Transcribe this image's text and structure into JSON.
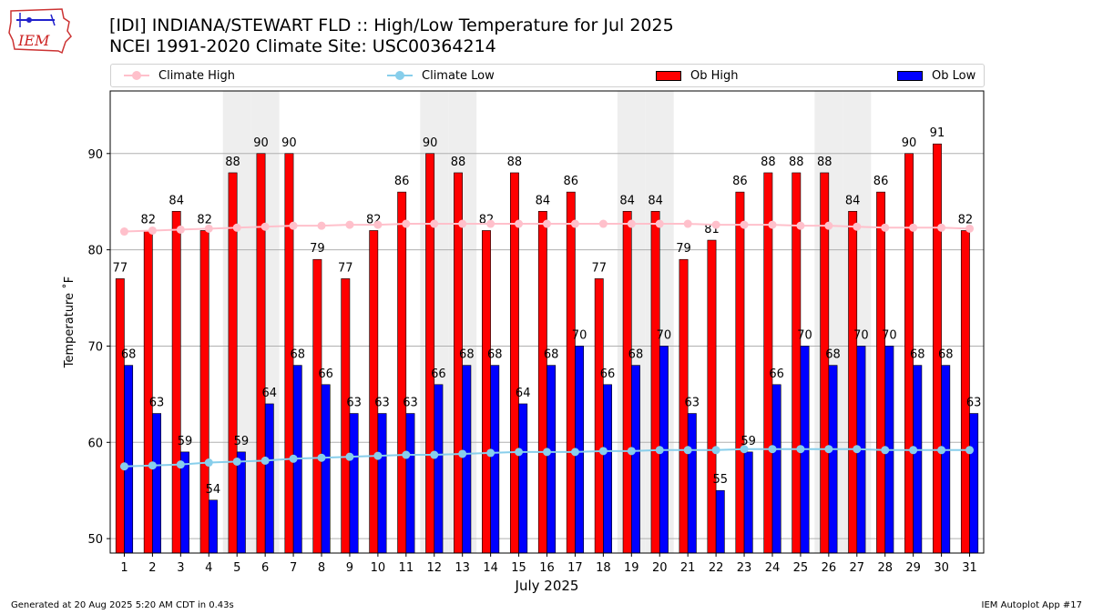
{
  "header": {
    "logo_text": "IEM",
    "title_line1": "[IDI] INDIANA/STEWART FLD :: High/Low Temperature for Jul 2025",
    "title_line2": "NCEI 1991-2020 Climate Site: USC00364214"
  },
  "legend": {
    "items": [
      {
        "label": "Climate High",
        "kind": "line",
        "color": "#ffc0cb"
      },
      {
        "label": "Climate Low",
        "kind": "line",
        "color": "#87ceeb"
      },
      {
        "label": "Ob High",
        "kind": "box",
        "color": "#ff0000"
      },
      {
        "label": "Ob Low",
        "kind": "box",
        "color": "#0000ff"
      }
    ]
  },
  "footer": {
    "left": "Generated at 20 Aug 2025 5:20 AM CDT in 0.43s",
    "right": "IEM Autoplot App #17"
  },
  "chart_data": {
    "type": "bar",
    "xlabel": "July 2025",
    "ylabel": "Temperature ˚F",
    "ylim": [
      48.5,
      96.5
    ],
    "yticks": [
      50,
      60,
      70,
      80,
      90
    ],
    "grid": "horizontal",
    "legend_position": "top",
    "categories": [
      "1",
      "2",
      "3",
      "4",
      "5",
      "6",
      "7",
      "8",
      "9",
      "10",
      "11",
      "12",
      "13",
      "14",
      "15",
      "16",
      "17",
      "18",
      "19",
      "20",
      "21",
      "22",
      "23",
      "24",
      "25",
      "26",
      "27",
      "28",
      "29",
      "30",
      "31"
    ],
    "shaded_days": [
      5,
      6,
      12,
      13,
      19,
      20,
      26,
      27
    ],
    "shade_color": "#eeeeee",
    "series": [
      {
        "name": "Ob High",
        "kind": "bar",
        "color": "#ff0000",
        "values": [
          77,
          82,
          84,
          82,
          88,
          90,
          90,
          79,
          77,
          82,
          86,
          90,
          88,
          82,
          88,
          84,
          86,
          77,
          84,
          84,
          79,
          81,
          86,
          88,
          88,
          88,
          84,
          86,
          90,
          91,
          82
        ]
      },
      {
        "name": "Ob Low",
        "kind": "bar",
        "color": "#0000ff",
        "values": [
          68,
          63,
          59,
          54,
          59,
          64,
          68,
          66,
          63,
          63,
          63,
          66,
          68,
          68,
          64,
          68,
          70,
          66,
          68,
          70,
          63,
          55,
          59,
          66,
          70,
          68,
          70,
          70,
          68,
          68,
          63
        ]
      },
      {
        "name": "Climate High",
        "kind": "line",
        "color": "#ffc0cb",
        "values": [
          81.9,
          82.0,
          82.1,
          82.2,
          82.3,
          82.4,
          82.5,
          82.5,
          82.6,
          82.6,
          82.7,
          82.7,
          82.7,
          82.7,
          82.7,
          82.7,
          82.7,
          82.7,
          82.7,
          82.7,
          82.7,
          82.6,
          82.6,
          82.6,
          82.5,
          82.5,
          82.4,
          82.3,
          82.3,
          82.3,
          82.2
        ]
      },
      {
        "name": "Climate Low",
        "kind": "line",
        "color": "#87ceeb",
        "values": [
          57.5,
          57.6,
          57.7,
          57.9,
          58.0,
          58.1,
          58.3,
          58.4,
          58.5,
          58.6,
          58.7,
          58.7,
          58.8,
          58.9,
          59.0,
          59.0,
          59.0,
          59.1,
          59.1,
          59.2,
          59.2,
          59.2,
          59.3,
          59.3,
          59.3,
          59.3,
          59.3,
          59.2,
          59.2,
          59.2,
          59.2
        ]
      }
    ]
  }
}
